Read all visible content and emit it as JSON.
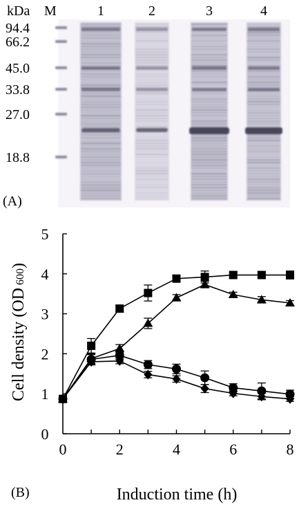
{
  "panel_a": {
    "panel_label": "(A)",
    "unit_header": "kDa",
    "marker_lane_label": "M",
    "lanes": [
      "1",
      "2",
      "3",
      "4"
    ],
    "markers": [
      "94.4",
      "66.2",
      "45.0",
      "33.8",
      "27.0",
      "18.8"
    ]
  },
  "panel_b": {
    "panel_label": "(B)"
  },
  "chart_data": {
    "type": "line",
    "title": "",
    "xlabel": "Induction time (h)",
    "ylabel_main": "Cell density (OD",
    "ylabel_sub": "600",
    "ylabel_close": ")",
    "xlim": [
      0,
      8
    ],
    "ylim": [
      0,
      5
    ],
    "xticks": [
      "0",
      "2",
      "4",
      "6",
      "8"
    ],
    "yticks": [
      "0",
      "1",
      "2",
      "3",
      "4",
      "5"
    ],
    "x": [
      0,
      1,
      2,
      3,
      4,
      5,
      6,
      7,
      8
    ],
    "series": [
      {
        "marker": "square",
        "values": [
          0.87,
          2.2,
          3.13,
          3.52,
          3.88,
          3.92,
          3.97,
          3.97,
          3.97
        ],
        "errors": [
          0.05,
          0.18,
          0.08,
          0.2,
          0.08,
          0.15,
          0.08,
          0.08,
          0.1
        ]
      },
      {
        "marker": "triangle",
        "values": [
          0.87,
          1.88,
          2.13,
          2.76,
          3.4,
          3.73,
          3.48,
          3.35,
          3.27
        ],
        "errors": [
          0.05,
          0.12,
          0.1,
          0.13,
          0.08,
          0.08,
          0.06,
          0.08,
          0.06
        ]
      },
      {
        "marker": "circle",
        "values": [
          0.87,
          1.86,
          1.96,
          1.73,
          1.62,
          1.4,
          1.15,
          1.07,
          0.99
        ],
        "errors": [
          0.05,
          0.12,
          0.1,
          0.1,
          0.12,
          0.17,
          0.1,
          0.2,
          0.1
        ]
      },
      {
        "marker": "diamond",
        "values": [
          0.87,
          1.8,
          1.82,
          1.48,
          1.37,
          1.13,
          1.01,
          0.93,
          0.87
        ],
        "errors": [
          0.05,
          0.08,
          0.07,
          0.08,
          0.08,
          0.1,
          0.06,
          0.08,
          0.06
        ]
      }
    ]
  }
}
